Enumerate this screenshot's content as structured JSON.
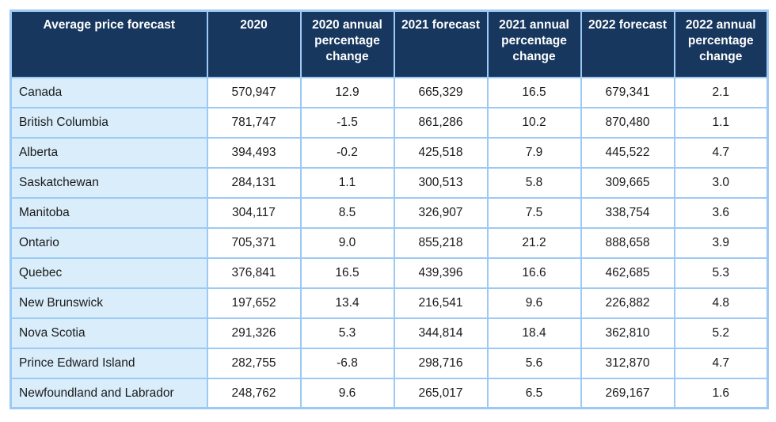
{
  "colors": {
    "header_bg": "#17375E",
    "header_text": "#FFFFFF",
    "row_label_bg": "#D9EDFB",
    "cell_bg": "#FFFFFF",
    "border": "#9DC9F5",
    "cell_text": "#1A1A1A"
  },
  "chart_data": {
    "type": "table",
    "title": "Average price forecast",
    "columns": [
      "Average price forecast",
      "2020",
      "2020 annual percentage change",
      "2021 forecast",
      "2021 annual percentage change",
      "2022 forecast",
      "2022 annual percentage change"
    ],
    "rows": [
      [
        "Canada",
        "570,947",
        "12.9",
        "665,329",
        "16.5",
        "679,341",
        "2.1"
      ],
      [
        "British Columbia",
        "781,747",
        "-1.5",
        "861,286",
        "10.2",
        "870,480",
        "1.1"
      ],
      [
        "Alberta",
        "394,493",
        "-0.2",
        "425,518",
        "7.9",
        "445,522",
        "4.7"
      ],
      [
        "Saskatchewan",
        "284,131",
        "1.1",
        "300,513",
        "5.8",
        "309,665",
        "3.0"
      ],
      [
        "Manitoba",
        "304,117",
        "8.5",
        "326,907",
        "7.5",
        "338,754",
        "3.6"
      ],
      [
        "Ontario",
        "705,371",
        "9.0",
        "855,218",
        "21.2",
        "888,658",
        "3.9"
      ],
      [
        "Quebec",
        "376,841",
        "16.5",
        "439,396",
        "16.6",
        "462,685",
        "5.3"
      ],
      [
        "New Brunswick",
        "197,652",
        "13.4",
        "216,541",
        "9.6",
        "226,882",
        "4.8"
      ],
      [
        "Nova Scotia",
        "291,326",
        "5.3",
        "344,814",
        "18.4",
        "362,810",
        "5.2"
      ],
      [
        "Prince Edward Island",
        "282,755",
        "-6.8",
        "298,716",
        "5.6",
        "312,870",
        "4.7"
      ],
      [
        "Newfoundland and Labrador",
        "248,762",
        "9.6",
        "265,017",
        "6.5",
        "269,167",
        "1.6"
      ]
    ]
  }
}
